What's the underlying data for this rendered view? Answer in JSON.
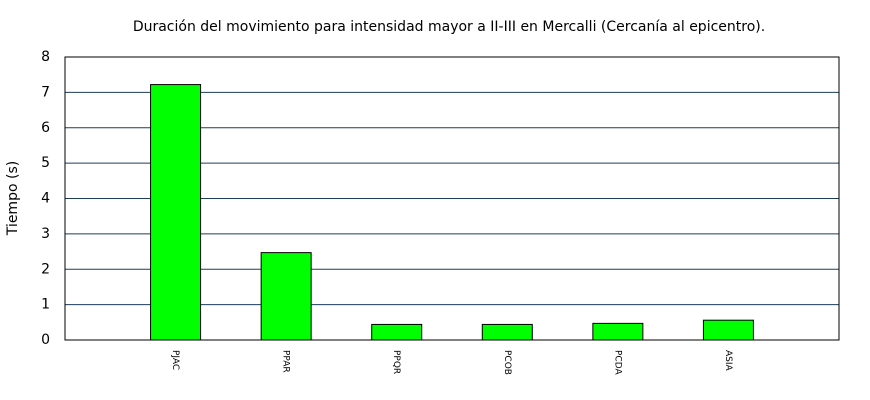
{
  "chart_data": {
    "type": "bar",
    "title": "Duración del movimiento para intensidad mayor a II-III en Mercalli (Cercanía al epicentro).",
    "y_label": "Tiempo (s)",
    "categories": [
      "PJAC",
      "PPAR",
      "PPQR",
      "PCOB",
      "PCDA",
      "ASIA"
    ],
    "values": [
      7.22,
      2.47,
      0.44,
      0.44,
      0.47,
      0.56
    ],
    "color": "#00ff00",
    "ylim": [
      0,
      8
    ],
    "yticks": [
      0,
      1,
      2,
      3,
      4,
      5,
      6,
      7,
      8
    ],
    "grid": true
  }
}
